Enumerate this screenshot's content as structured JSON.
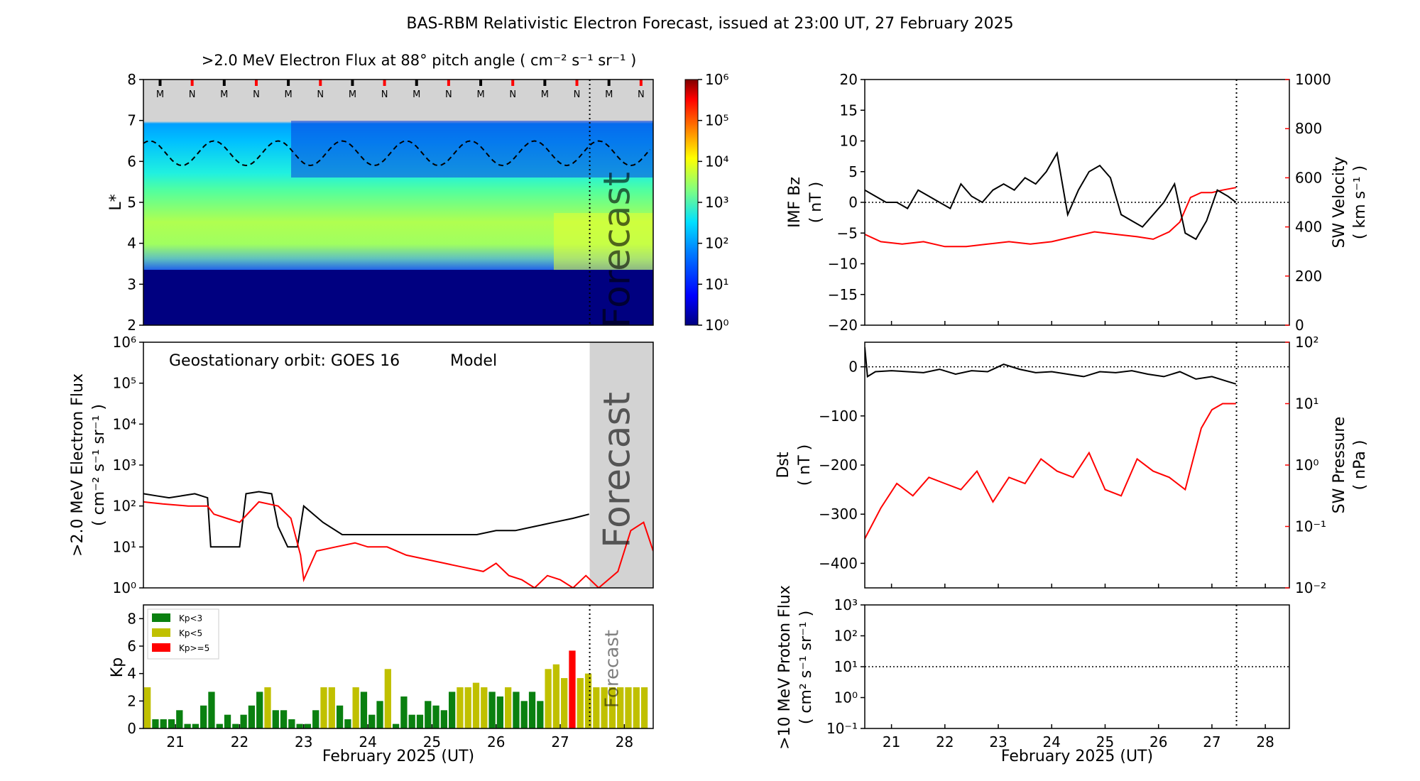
{
  "title": "BAS-RBM Relativistic Electron Forecast, issued at 23:00 UT, 27 February 2025",
  "colors": {
    "observed": "#000000",
    "model": "#ff0000",
    "forecast_shade": "#d3d3d3",
    "kp_low": "#0a8010",
    "kp_mid": "#c0c000",
    "kp_high": "#ff0000"
  },
  "chart_data": [
    {
      "id": "lstar",
      "type": "heatmap",
      "title": ">2.0 MeV Electron Flux at 88° pitch angle ( cm⁻² s⁻¹ sr⁻¹ )",
      "ylabel": "L*",
      "xlim": [
        20.5,
        28.45
      ],
      "ylim": [
        2,
        8
      ],
      "yticks": [
        "2",
        "3",
        "4",
        "5",
        "6",
        "7",
        "8"
      ],
      "xticks": [
        "21",
        "22",
        "23",
        "24",
        "25",
        "26",
        "27",
        "28"
      ],
      "forecast_label": "Forecast",
      "forecast_start": 27.46,
      "orbit_markers": [
        {
          "label": "M",
          "x": 20.76
        },
        {
          "label": "N",
          "x": 21.26
        },
        {
          "label": "M",
          "x": 21.76
        },
        {
          "label": "N",
          "x": 22.26
        },
        {
          "label": "M",
          "x": 22.76
        },
        {
          "label": "N",
          "x": 23.26
        },
        {
          "label": "M",
          "x": 23.76
        },
        {
          "label": "N",
          "x": 24.26
        },
        {
          "label": "M",
          "x": 24.76
        },
        {
          "label": "N",
          "x": 25.26
        },
        {
          "label": "M",
          "x": 25.76
        },
        {
          "label": "N",
          "x": 26.26
        },
        {
          "label": "M",
          "x": 26.76
        },
        {
          "label": "N",
          "x": 27.26
        },
        {
          "label": "M",
          "x": 27.76
        },
        {
          "label": "N",
          "x": 28.26
        }
      ],
      "colorbar": {
        "ticks": [
          "10⁰",
          "10¹",
          "10²",
          "10³",
          "10⁴",
          "10⁵",
          "10⁶"
        ],
        "range": [
          0,
          6
        ]
      },
      "magnetopause_mean_L": 6.2
    },
    {
      "id": "geo",
      "type": "line",
      "ylabel_line1": ">2.0 MeV Electron Flux",
      "ylabel_line2": "( cm⁻² s⁻¹ sr⁻¹ )",
      "legend_text": "Geostationary orbit:   GOES 16",
      "legend_model": "Model",
      "forecast_label": "Forecast",
      "xlim": [
        20.5,
        28.45
      ],
      "ylim_log": [
        0,
        6
      ],
      "yticks": [
        "10⁰",
        "10¹",
        "10²",
        "10³",
        "10⁴",
        "10⁵",
        "10⁶"
      ],
      "xticks": [
        "21",
        "22",
        "23",
        "24",
        "25",
        "26",
        "27",
        "28"
      ],
      "forecast_start": 27.46,
      "series": [
        {
          "name": "GOES 16",
          "x": [
            20.5,
            20.7,
            20.9,
            21.1,
            21.3,
            21.5,
            21.55,
            21.7,
            21.9,
            22.0,
            22.1,
            22.3,
            22.5,
            22.6,
            22.75,
            22.9,
            23.0,
            23.3,
            23.6,
            23.9,
            24.2,
            24.5,
            24.8,
            25.1,
            25.4,
            25.7,
            26.0,
            26.3,
            26.6,
            26.9,
            27.2,
            27.45
          ],
          "y": [
            2.3,
            2.25,
            2.2,
            2.25,
            2.3,
            2.2,
            1.0,
            1.0,
            1.0,
            1.0,
            2.3,
            2.35,
            2.3,
            1.5,
            1.0,
            1.0,
            2.0,
            1.6,
            1.3,
            1.3,
            1.3,
            1.3,
            1.3,
            1.3,
            1.3,
            1.3,
            1.4,
            1.4,
            1.5,
            1.6,
            1.7,
            1.8
          ]
        },
        {
          "name": "Model",
          "x": [
            20.5,
            20.8,
            21.2,
            21.5,
            21.6,
            21.8,
            22.0,
            22.3,
            22.6,
            22.8,
            22.95,
            23.0,
            23.2,
            23.5,
            23.8,
            24.0,
            24.3,
            24.6,
            24.9,
            25.2,
            25.5,
            25.8,
            26.0,
            26.2,
            26.4,
            26.6,
            26.8,
            27.0,
            27.2,
            27.4,
            27.6,
            27.9,
            28.1,
            28.3,
            28.45
          ],
          "y": [
            2.1,
            2.05,
            2.0,
            2.0,
            1.8,
            1.7,
            1.6,
            2.1,
            2.0,
            1.7,
            0.8,
            0.2,
            0.9,
            1.0,
            1.1,
            1.0,
            1.0,
            0.8,
            0.7,
            0.6,
            0.5,
            0.4,
            0.6,
            0.3,
            0.2,
            0.0,
            0.3,
            0.2,
            0.0,
            0.3,
            0.0,
            0.4,
            1.4,
            1.6,
            0.9
          ]
        }
      ]
    },
    {
      "id": "kp",
      "type": "bar",
      "ylabel": "Kp",
      "xlabel": "February 2025 (UT)",
      "forecast_label": "Forecast",
      "xlim": [
        20.5,
        28.45
      ],
      "ylim": [
        0,
        9
      ],
      "yticks": [
        "0",
        "2",
        "4",
        "6",
        "8"
      ],
      "xticks": [
        "21",
        "22",
        "23",
        "24",
        "25",
        "26",
        "27",
        "28"
      ],
      "forecast_start": 27.46,
      "legend": [
        "Kp<3",
        "Kp<5",
        "Kp>=5"
      ],
      "bar_start": 20.5,
      "bar_width_days": 0.125,
      "values": [
        3.0,
        0.67,
        0.67,
        0.67,
        1.33,
        0.33,
        0.33,
        1.67,
        2.67,
        0.33,
        1.0,
        0.33,
        1.0,
        1.67,
        2.67,
        3.0,
        1.33,
        1.33,
        0.67,
        0.33,
        0.33,
        1.33,
        3.0,
        3.0,
        1.67,
        0.67,
        3.0,
        2.67,
        1.0,
        2.0,
        4.33,
        0.33,
        2.33,
        1.0,
        1.0,
        2.0,
        1.67,
        1.33,
        2.67,
        3.0,
        3.0,
        3.33,
        3.0,
        2.67,
        2.33,
        3.0,
        2.67,
        2.0,
        2.67,
        2.0,
        4.33,
        4.67,
        3.67,
        5.67,
        3.67,
        4.0,
        3.0,
        3.0,
        3.0,
        3.0,
        3.0,
        3.0,
        3.0
      ]
    },
    {
      "id": "imf",
      "type": "line",
      "ylabel_line1": "IMF Bz",
      "ylabel_line2": "( nT )",
      "ylabel_right_line1": "SW Velocity",
      "ylabel_right_line2": "( km s⁻¹ )",
      "xlim": [
        20.5,
        28.45
      ],
      "ylim": [
        -20,
        20
      ],
      "ylim_right": [
        0,
        1000
      ],
      "yticks": [
        "20",
        "15",
        "10",
        "5",
        "0",
        "−5",
        "−10",
        "−15",
        "−20"
      ],
      "yticks_right": [
        "1000",
        "800",
        "600",
        "400",
        "200",
        "0"
      ],
      "now_line": 27.46,
      "series": [
        {
          "name": "IMF Bz",
          "x": [
            20.5,
            20.7,
            20.9,
            21.1,
            21.3,
            21.5,
            21.7,
            21.9,
            22.1,
            22.3,
            22.5,
            22.7,
            22.9,
            23.1,
            23.3,
            23.5,
            23.7,
            23.9,
            24.1,
            24.3,
            24.5,
            24.7,
            24.9,
            25.1,
            25.3,
            25.5,
            25.7,
            25.9,
            26.1,
            26.3,
            26.5,
            26.7,
            26.9,
            27.1,
            27.3,
            27.45
          ],
          "y": [
            2,
            1,
            0,
            0,
            -1,
            2,
            1,
            0,
            -1,
            3,
            1,
            0,
            2,
            3,
            2,
            4,
            3,
            5,
            8,
            -2,
            2,
            5,
            6,
            4,
            -2,
            -3,
            -4,
            -2,
            0,
            3,
            -5,
            -6,
            -3,
            2,
            1,
            0
          ]
        },
        {
          "name": "SW Velocity",
          "x": [
            20.5,
            20.8,
            21.2,
            21.6,
            22.0,
            22.4,
            22.8,
            23.2,
            23.6,
            24.0,
            24.4,
            24.8,
            25.2,
            25.6,
            25.9,
            26.0,
            26.2,
            26.4,
            26.6,
            26.8,
            27.0,
            27.2,
            27.45
          ],
          "y": [
            370,
            340,
            330,
            340,
            320,
            320,
            330,
            340,
            330,
            340,
            360,
            380,
            370,
            360,
            350,
            360,
            380,
            420,
            520,
            540,
            540,
            550,
            560
          ]
        }
      ]
    },
    {
      "id": "dst",
      "type": "line",
      "ylabel_line1": "Dst",
      "ylabel_line2": "( nT )",
      "ylabel_right_line1": "SW Pressure",
      "ylabel_right_line2": "( nPa )",
      "xlim": [
        20.5,
        28.45
      ],
      "ylim": [
        -450,
        50
      ],
      "ylim_right_log": [
        -2,
        2
      ],
      "yticks": [
        "0",
        "−100",
        "−200",
        "−300",
        "−400"
      ],
      "yticks_right": [
        "10²",
        "10¹",
        "10⁰",
        "10⁻¹",
        "10⁻²"
      ],
      "now_line": 27.46,
      "series": [
        {
          "name": "Dst",
          "x": [
            20.5,
            20.55,
            20.7,
            21.0,
            21.3,
            21.6,
            21.9,
            22.2,
            22.5,
            22.8,
            23.1,
            23.4,
            23.7,
            24.0,
            24.3,
            24.6,
            24.9,
            25.2,
            25.5,
            25.8,
            26.1,
            26.4,
            26.7,
            27.0,
            27.3,
            27.45
          ],
          "y": [
            40,
            -20,
            -10,
            -8,
            -10,
            -12,
            -5,
            -15,
            -8,
            -10,
            5,
            -5,
            -12,
            -10,
            -15,
            -20,
            -10,
            -12,
            -8,
            -15,
            -20,
            -10,
            -25,
            -20,
            -30,
            -35
          ]
        },
        {
          "name": "SW Pressure",
          "x": [
            20.5,
            20.8,
            21.1,
            21.4,
            21.7,
            22.0,
            22.3,
            22.6,
            22.9,
            23.2,
            23.5,
            23.8,
            24.1,
            24.4,
            24.7,
            25.0,
            25.3,
            25.6,
            25.9,
            26.2,
            26.5,
            26.8,
            27.0,
            27.2,
            27.45
          ],
          "y": [
            -1.2,
            -0.7,
            -0.3,
            -0.5,
            -0.2,
            -0.3,
            -0.4,
            -0.1,
            -0.6,
            -0.2,
            -0.3,
            0.1,
            -0.1,
            -0.2,
            0.2,
            -0.4,
            -0.5,
            0.1,
            -0.1,
            -0.2,
            -0.4,
            0.6,
            0.9,
            1.0,
            1.0
          ]
        }
      ]
    },
    {
      "id": "proton",
      "type": "line",
      "ylabel_line1": ">10 MeV Proton Flux",
      "ylabel_line2": "( cm² s⁻¹ sr⁻¹ )",
      "xlabel": "February 2025 (UT)",
      "xlim": [
        20.5,
        28.45
      ],
      "ylim_log": [
        -1,
        3
      ],
      "yticks": [
        "10³",
        "10²",
        "10¹",
        "10⁰",
        "10⁻¹"
      ],
      "xticks": [
        "21",
        "22",
        "23",
        "24",
        "25",
        "26",
        "27",
        "28"
      ],
      "threshold": 1,
      "now_line": 27.46,
      "series": []
    }
  ]
}
